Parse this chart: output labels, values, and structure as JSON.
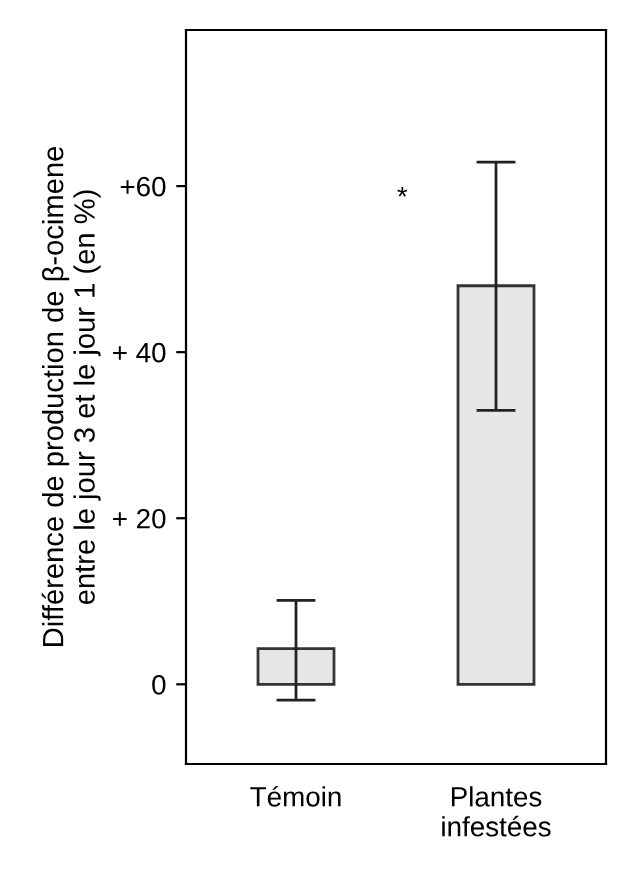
{
  "chart_data": {
    "type": "bar",
    "ylabel": "Différence de production de β-ocimene\nentre le jour 3 et le jour 1 (en %)",
    "categories": [
      "Témoin",
      "Plantes\ninfestées"
    ],
    "values": [
      4.3,
      48
    ],
    "errors": [
      [
        -1.9,
        10.1
      ],
      [
        33,
        62.9
      ]
    ],
    "color": "#e6e6e6",
    "ylim": [
      -9.6,
      78.8
    ],
    "yticks": [
      {
        "value": 0,
        "label": "0"
      },
      {
        "value": 20,
        "label": "+ 20"
      },
      {
        "value": 40,
        "label": "+ 40"
      },
      {
        "value": 60,
        "label": "+60"
      }
    ],
    "annotations": [
      "*"
    ],
    "grid": false,
    "legend": false
  }
}
